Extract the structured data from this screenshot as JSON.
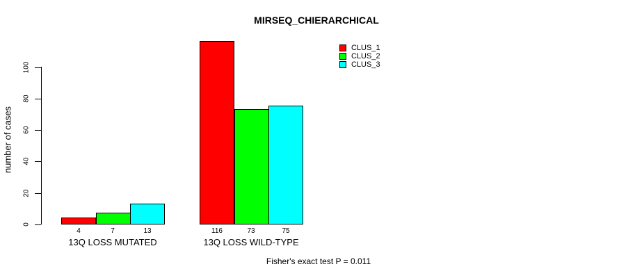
{
  "chart_data": {
    "type": "bar",
    "title": "MIRSEQ_CHIERARCHICAL",
    "xlabel": "",
    "ylabel": "number of cases",
    "ylim": [
      0,
      120
    ],
    "yticks": [
      0,
      20,
      40,
      60,
      80,
      100
    ],
    "grid": false,
    "categories": [
      "13Q LOSS MUTATED",
      "13Q LOSS WILD-TYPE"
    ],
    "series": [
      {
        "name": "CLUS_1",
        "color": "#ff0000",
        "values": [
          4,
          116
        ]
      },
      {
        "name": "CLUS_2",
        "color": "#00ff00",
        "values": [
          7,
          73
        ]
      },
      {
        "name": "CLUS_3",
        "color": "#00ffff",
        "values": [
          13,
          75
        ]
      }
    ],
    "bar_value_labels_shown": true,
    "legend_position": "top-right",
    "legend_items": [
      "CLUS_1",
      "CLUS_2",
      "CLUS_3"
    ],
    "annotation": "Fisher's exact test P = 0.011"
  },
  "colors": {
    "background": "#ffffff",
    "axis": "#000000",
    "text": "#000000",
    "clus_1": "#ff0000",
    "clus_2": "#00ff00",
    "clus_3": "#00ffff"
  }
}
